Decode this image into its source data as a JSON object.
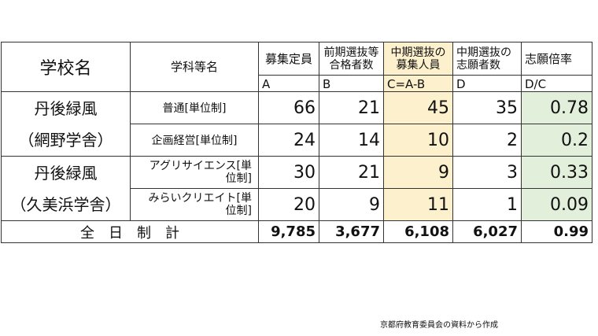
{
  "table": {
    "headers": {
      "school": "学校名",
      "department": "学科等名",
      "col_a": "募集定員",
      "col_b": "前期選抜等合格者数",
      "col_b_line1": "前期選抜等",
      "col_b_line2": "合格者数",
      "col_c_line1": "中期選抜の",
      "col_c_line2": "募集人員",
      "col_d_line1": "中期選抜の",
      "col_d_line2": "志願者数",
      "col_e": "志願倍率",
      "sub_a": "A",
      "sub_b": "B",
      "sub_c": "C=A-B",
      "sub_d": "D",
      "sub_e": "D/C"
    },
    "groups": [
      {
        "school_line1": "丹後緑風",
        "school_line2": "（網野学舎）"
      },
      {
        "school_line1": "丹後緑風",
        "school_line2": "（久美浜学舎）"
      }
    ],
    "rows": [
      {
        "dept": "普通[単位制]",
        "a": "66",
        "b": "21",
        "c": "45",
        "d": "35",
        "e": "0.78"
      },
      {
        "dept": "企画経営[単位制]",
        "a": "24",
        "b": "14",
        "c": "10",
        "d": "2",
        "e": "0.2"
      },
      {
        "dept_line1": "アグリサイエンス[単",
        "dept_line2": "位制]",
        "a": "30",
        "b": "21",
        "c": "9",
        "d": "3",
        "e": "0.33"
      },
      {
        "dept_line1": "みらいクリエイト[単",
        "dept_line2": "位制]",
        "a": "20",
        "b": "9",
        "c": "11",
        "d": "1",
        "e": "0.09"
      }
    ],
    "total": {
      "label": "全　日　制　計",
      "a": "9,785",
      "b": "3,677",
      "c": "6,108",
      "d": "6,027",
      "e": "0.99"
    }
  },
  "colors": {
    "col_c_highlight": "#fdf0cc",
    "col_e_highlight": "#e2efda"
  },
  "source": "京都府教育委員会の資料から作成"
}
